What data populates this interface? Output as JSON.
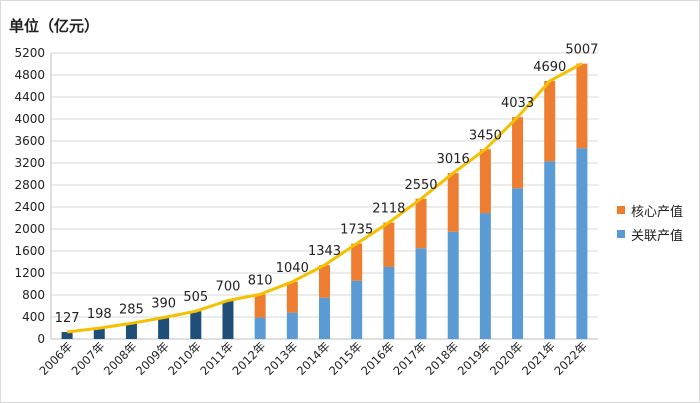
{
  "chart_data": {
    "type": "bar",
    "unit_label": "单位（亿元）",
    "categories": [
      "2006年",
      "2007年",
      "2008年",
      "2009年",
      "2010年",
      "2011年",
      "2012年",
      "2013年",
      "2014年",
      "2015年",
      "2016年",
      "2017年",
      "2018年",
      "2019年",
      "2020年",
      "2021年",
      "2022年"
    ],
    "totals": [
      127,
      198,
      285,
      390,
      505,
      700,
      810,
      1040,
      1343,
      1735,
      2118,
      2550,
      3016,
      3450,
      4033,
      4690,
      5007
    ],
    "total_labels": [
      "127",
      "198",
      "285",
      "390",
      "505",
      "700",
      "810",
      "1040",
      "1343",
      "1735",
      "2118",
      "2550",
      "3016",
      "3450",
      "4033",
      "4690",
      "5007"
    ],
    "series": [
      {
        "name": "关联产值",
        "color": "#5b9bd5",
        "values": [
          null,
          null,
          null,
          null,
          null,
          null,
          390,
          480,
          750,
          1060,
          1310,
          1650,
          1950,
          2290,
          2740,
          3230,
          3470
        ]
      },
      {
        "name": "核心产值",
        "color": "#ed7d31",
        "values": [
          null,
          null,
          null,
          null,
          null,
          null,
          420,
          560,
          593,
          675,
          808,
          900,
          1066,
          1160,
          1293,
          1460,
          1537
        ]
      }
    ],
    "total_bar_color": "#1f4e79",
    "trend_line_color": "#f5c000",
    "ylim": [
      0,
      5200
    ],
    "yticks": [
      0,
      400,
      800,
      1200,
      1600,
      2000,
      2400,
      2800,
      3200,
      3600,
      4000,
      4400,
      4800,
      5200
    ],
    "legend": [
      "核心产值",
      "关联产值"
    ],
    "legend_position": "right"
  }
}
